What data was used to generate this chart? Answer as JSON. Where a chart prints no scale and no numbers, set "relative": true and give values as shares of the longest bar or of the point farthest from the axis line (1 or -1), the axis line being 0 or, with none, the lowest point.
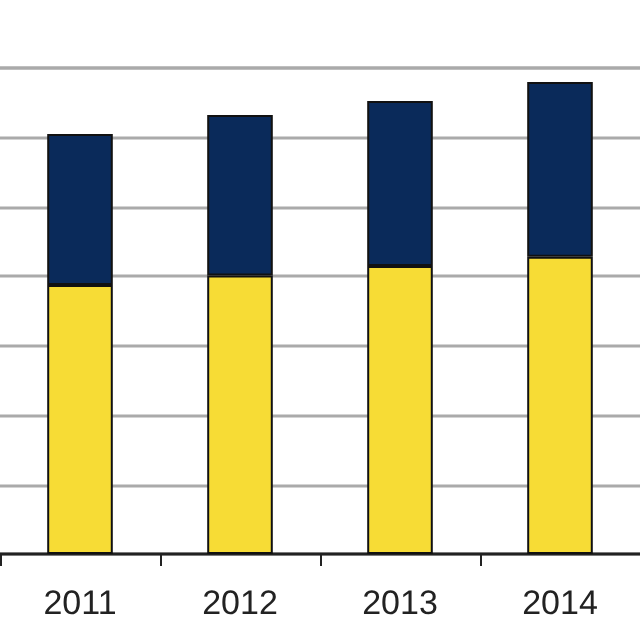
{
  "chart_data": {
    "type": "bar",
    "relative": true,
    "stacked": true,
    "grid": "y",
    "categories": [
      "2011",
      "2012",
      "2013",
      "2014"
    ],
    "series": [
      {
        "color": "#f7dc35",
        "values": [
          0.57,
          0.59,
          0.61,
          0.63
        ]
      },
      {
        "color": "#0a2a5a",
        "values": [
          0.32,
          0.34,
          0.35,
          0.37
        ]
      }
    ]
  }
}
